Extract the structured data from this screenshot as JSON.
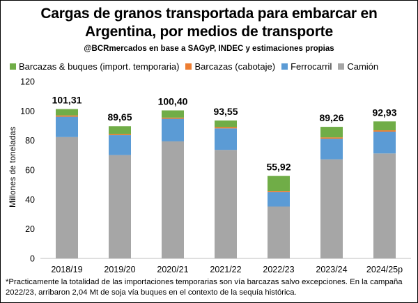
{
  "header": {
    "title_line1": "Cargas de granos transportada para embarcar en",
    "title_line2": "Argentina, por medios de transporte",
    "subtitle": "@BCRmercados en base a SAGyP, INDEC y estimaciones propias"
  },
  "footnote": {
    "line1": "*Practicamente la totalidad de las importaciones temporarias son vía barcazas salvo excepciones. En la campaña",
    "line2": "2022/23, arribaron 2,04 Mt de soja vía buques en el contexto de la sequía histórica."
  },
  "chart_data": {
    "type": "bar",
    "stacked": true,
    "categories": [
      "2018/19",
      "2019/20",
      "2020/21",
      "2021/22",
      "2022/23",
      "2023/24",
      "2024/25p"
    ],
    "series": [
      {
        "name": "Camión",
        "color": "#a6a6a6",
        "values": [
          82.3,
          70.1,
          79.4,
          73.6,
          35.2,
          67.2,
          71.2
        ]
      },
      {
        "name": "Ferrocarril",
        "color": "#5b9bd5",
        "values": [
          13.8,
          13.5,
          15.3,
          14.6,
          9.8,
          14.0,
          14.8
        ]
      },
      {
        "name": "Barcazas (cabotaje)",
        "color": "#ed7d31",
        "values": [
          0.9,
          0.8,
          0.8,
          0.9,
          0.8,
          0.9,
          0.9
        ]
      },
      {
        "name": "Barcazas & buques (import. temporaria)",
        "color": "#70ad47",
        "values": [
          4.31,
          5.25,
          4.9,
          4.45,
          10.12,
          7.16,
          6.03
        ]
      }
    ],
    "legend_order": [
      "Barcazas & buques (import. temporaria)",
      "Barcazas (cabotaje)",
      "Ferrocarril",
      "Camión"
    ],
    "totals": [
      101.31,
      89.65,
      100.4,
      93.55,
      55.92,
      89.26,
      92.93
    ],
    "total_labels": [
      "101,31",
      "89,65",
      "100,40",
      "93,55",
      "55,92",
      "89,26",
      "92,93"
    ],
    "ylabel": "Millones de toneladas",
    "ylim": [
      0,
      120
    ],
    "yticks": [
      0,
      20,
      40,
      60,
      80,
      100,
      120
    ],
    "grid": false,
    "legend_position": "top"
  }
}
